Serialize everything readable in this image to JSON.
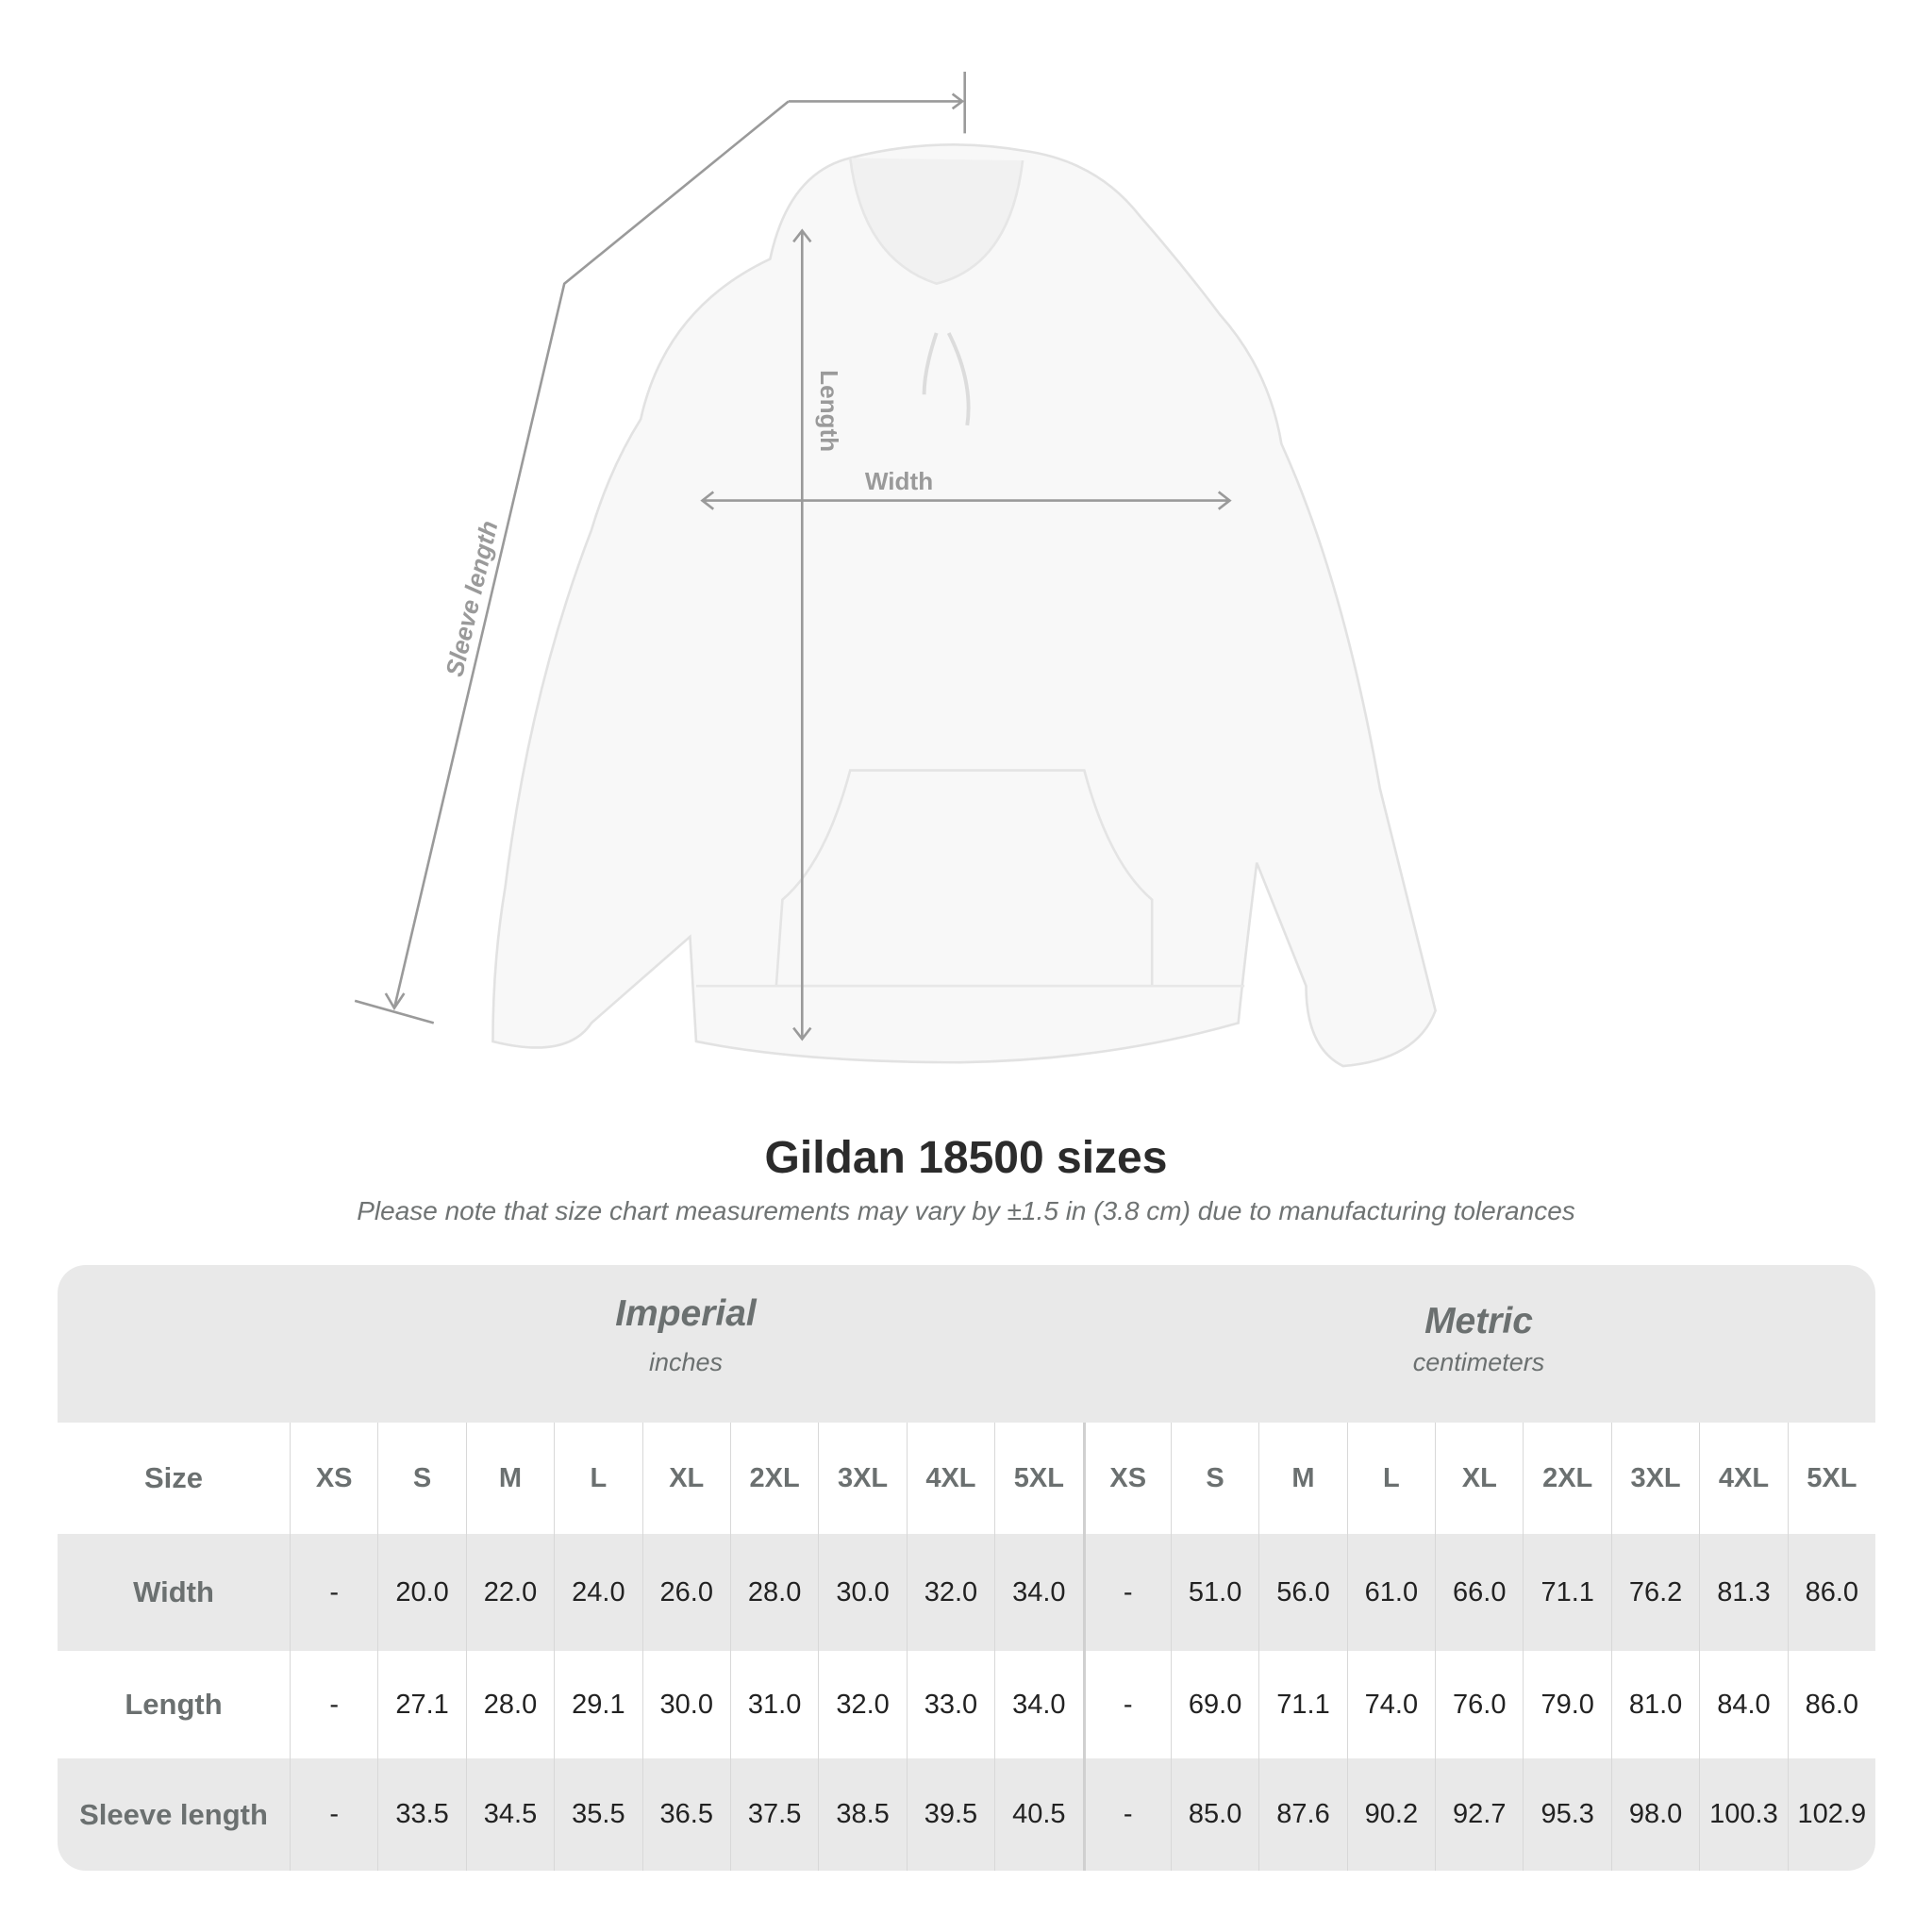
{
  "diagram": {
    "labels": {
      "sleeve": "Sleeve length",
      "length": "Length",
      "width": "Width"
    },
    "line_color": "#9a9a9a"
  },
  "title": "Gildan 18500 sizes",
  "subtitle": "Please note that size chart measurements may vary by ±1.5 in (3.8 cm) due to manufacturing tolerances",
  "table": {
    "groups": [
      {
        "name": "Imperial",
        "unit": "inches"
      },
      {
        "name": "Metric",
        "unit": "centimeters"
      }
    ],
    "size_label": "Size",
    "sizes": [
      "XS",
      "S",
      "M",
      "L",
      "XL",
      "2XL",
      "3XL",
      "4XL",
      "5XL"
    ],
    "rows": [
      {
        "label": "Width",
        "imperial": [
          "-",
          "20.0",
          "22.0",
          "24.0",
          "26.0",
          "28.0",
          "30.0",
          "32.0",
          "34.0"
        ],
        "metric": [
          "-",
          "51.0",
          "56.0",
          "61.0",
          "66.0",
          "71.1",
          "76.2",
          "81.3",
          "86.0"
        ]
      },
      {
        "label": "Length",
        "imperial": [
          "-",
          "27.1",
          "28.0",
          "29.1",
          "30.0",
          "31.0",
          "32.0",
          "33.0",
          "34.0"
        ],
        "metric": [
          "-",
          "69.0",
          "71.1",
          "74.0",
          "76.0",
          "79.0",
          "81.0",
          "84.0",
          "86.0"
        ]
      },
      {
        "label": "Sleeve length",
        "imperial": [
          "-",
          "33.5",
          "34.5",
          "35.5",
          "36.5",
          "37.5",
          "38.5",
          "39.5",
          "40.5"
        ],
        "metric": [
          "-",
          "85.0",
          "87.6",
          "90.2",
          "92.7",
          "95.3",
          "98.0",
          "100.3",
          "102.9"
        ]
      }
    ]
  }
}
